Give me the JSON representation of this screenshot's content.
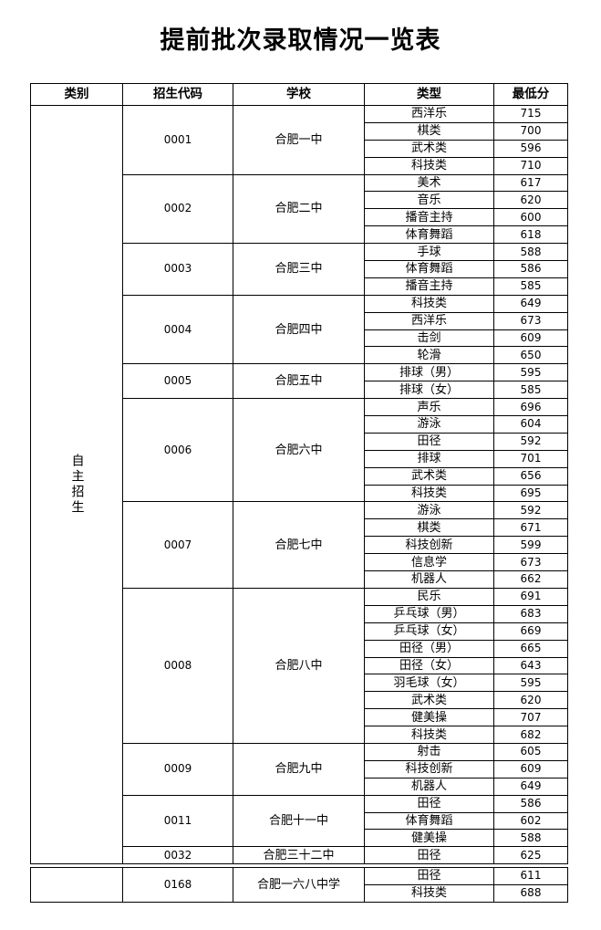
{
  "title": "提前批次录取情况一览表",
  "headers": [
    "类别",
    "招生代码",
    "学校",
    "类型",
    "最低分"
  ],
  "category": "自主招生",
  "groups": [
    {
      "code": "0001",
      "school": "合肥一中",
      "items": [
        [
          "西洋乐",
          "715"
        ],
        [
          "棋类",
          "700"
        ],
        [
          "武术类",
          "596"
        ],
        [
          "科技类",
          "710"
        ]
      ]
    },
    {
      "code": "0002",
      "school": "合肥二中",
      "items": [
        [
          "美术",
          "617"
        ],
        [
          "音乐",
          "620"
        ],
        [
          "播音主持",
          "600"
        ],
        [
          "体育舞蹈",
          "618"
        ]
      ]
    },
    {
      "code": "0003",
      "school": "合肥三中",
      "items": [
        [
          "手球",
          "588"
        ],
        [
          "体育舞蹈",
          "586"
        ],
        [
          "播音主持",
          "585"
        ]
      ]
    },
    {
      "code": "0004",
      "school": "合肥四中",
      "items": [
        [
          "科技类",
          "649"
        ],
        [
          "西洋乐",
          "673"
        ],
        [
          "击剑",
          "609"
        ],
        [
          "轮滑",
          "650"
        ]
      ]
    },
    {
      "code": "0005",
      "school": "合肥五中",
      "items": [
        [
          "排球（男）",
          "595"
        ],
        [
          "排球（女）",
          "585"
        ]
      ]
    },
    {
      "code": "0006",
      "school": "合肥六中",
      "items": [
        [
          "声乐",
          "696"
        ],
        [
          "游泳",
          "604"
        ],
        [
          "田径",
          "592"
        ],
        [
          "排球",
          "701"
        ],
        [
          "武术类",
          "656"
        ],
        [
          "科技类",
          "695"
        ]
      ]
    },
    {
      "code": "0007",
      "school": "合肥七中",
      "items": [
        [
          "游泳",
          "592"
        ],
        [
          "棋类",
          "671"
        ],
        [
          "科技创新",
          "599"
        ],
        [
          "信息学",
          "673"
        ],
        [
          "机器人",
          "662"
        ]
      ]
    },
    {
      "code": "0008",
      "school": "合肥八中",
      "items": [
        [
          "民乐",
          "691"
        ],
        [
          "乒乓球（男）",
          "683"
        ],
        [
          "乒乓球（女）",
          "669"
        ],
        [
          "田径（男）",
          "665"
        ],
        [
          "田径（女）",
          "643"
        ],
        [
          "羽毛球（女）",
          "595"
        ],
        [
          "武术类",
          "620"
        ],
        [
          "健美操",
          "707"
        ],
        [
          "科技类",
          "682"
        ]
      ]
    },
    {
      "code": "0009",
      "school": "合肥九中",
      "items": [
        [
          "射击",
          "605"
        ],
        [
          "科技创新",
          "609"
        ],
        [
          "机器人",
          "649"
        ]
      ]
    },
    {
      "code": "0011",
      "school": "合肥十一中",
      "items": [
        [
          "田径",
          "586"
        ],
        [
          "体育舞蹈",
          "602"
        ],
        [
          "健美操",
          "588"
        ]
      ]
    },
    {
      "code": "0032",
      "school": "合肥三十二中",
      "items": [
        [
          "田径",
          "625"
        ]
      ]
    }
  ],
  "extra_groups": [
    {
      "code": "0168",
      "school": "合肥一六八中学",
      "items": [
        [
          "田径",
          "611"
        ],
        [
          "科技类",
          "688"
        ]
      ]
    }
  ]
}
